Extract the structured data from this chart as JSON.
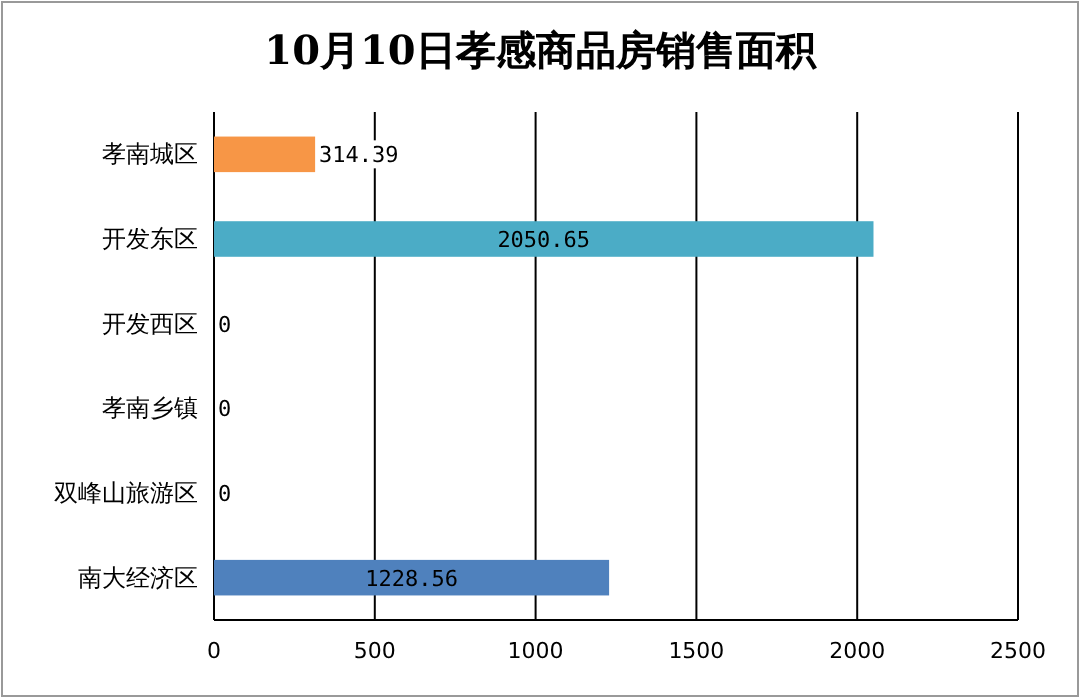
{
  "chart_data": {
    "type": "bar",
    "orientation": "horizontal",
    "title": "10月10日孝感商品房销售面积",
    "categories": [
      "孝南城区",
      "开发东区",
      "开发西区",
      "孝南乡镇",
      "双峰山旅游区",
      "南大经济区"
    ],
    "values": [
      314.39,
      2050.65,
      0,
      0,
      0,
      1228.56
    ],
    "colors": [
      "#f79646",
      "#4bacc6",
      "#4f81bd",
      "#4f81bd",
      "#4f81bd",
      "#4f81bd"
    ],
    "xlim": [
      0,
      2500
    ],
    "xticks": [
      0,
      500,
      1000,
      1500,
      2000,
      2500
    ],
    "grid": "x",
    "data_labels": true
  }
}
